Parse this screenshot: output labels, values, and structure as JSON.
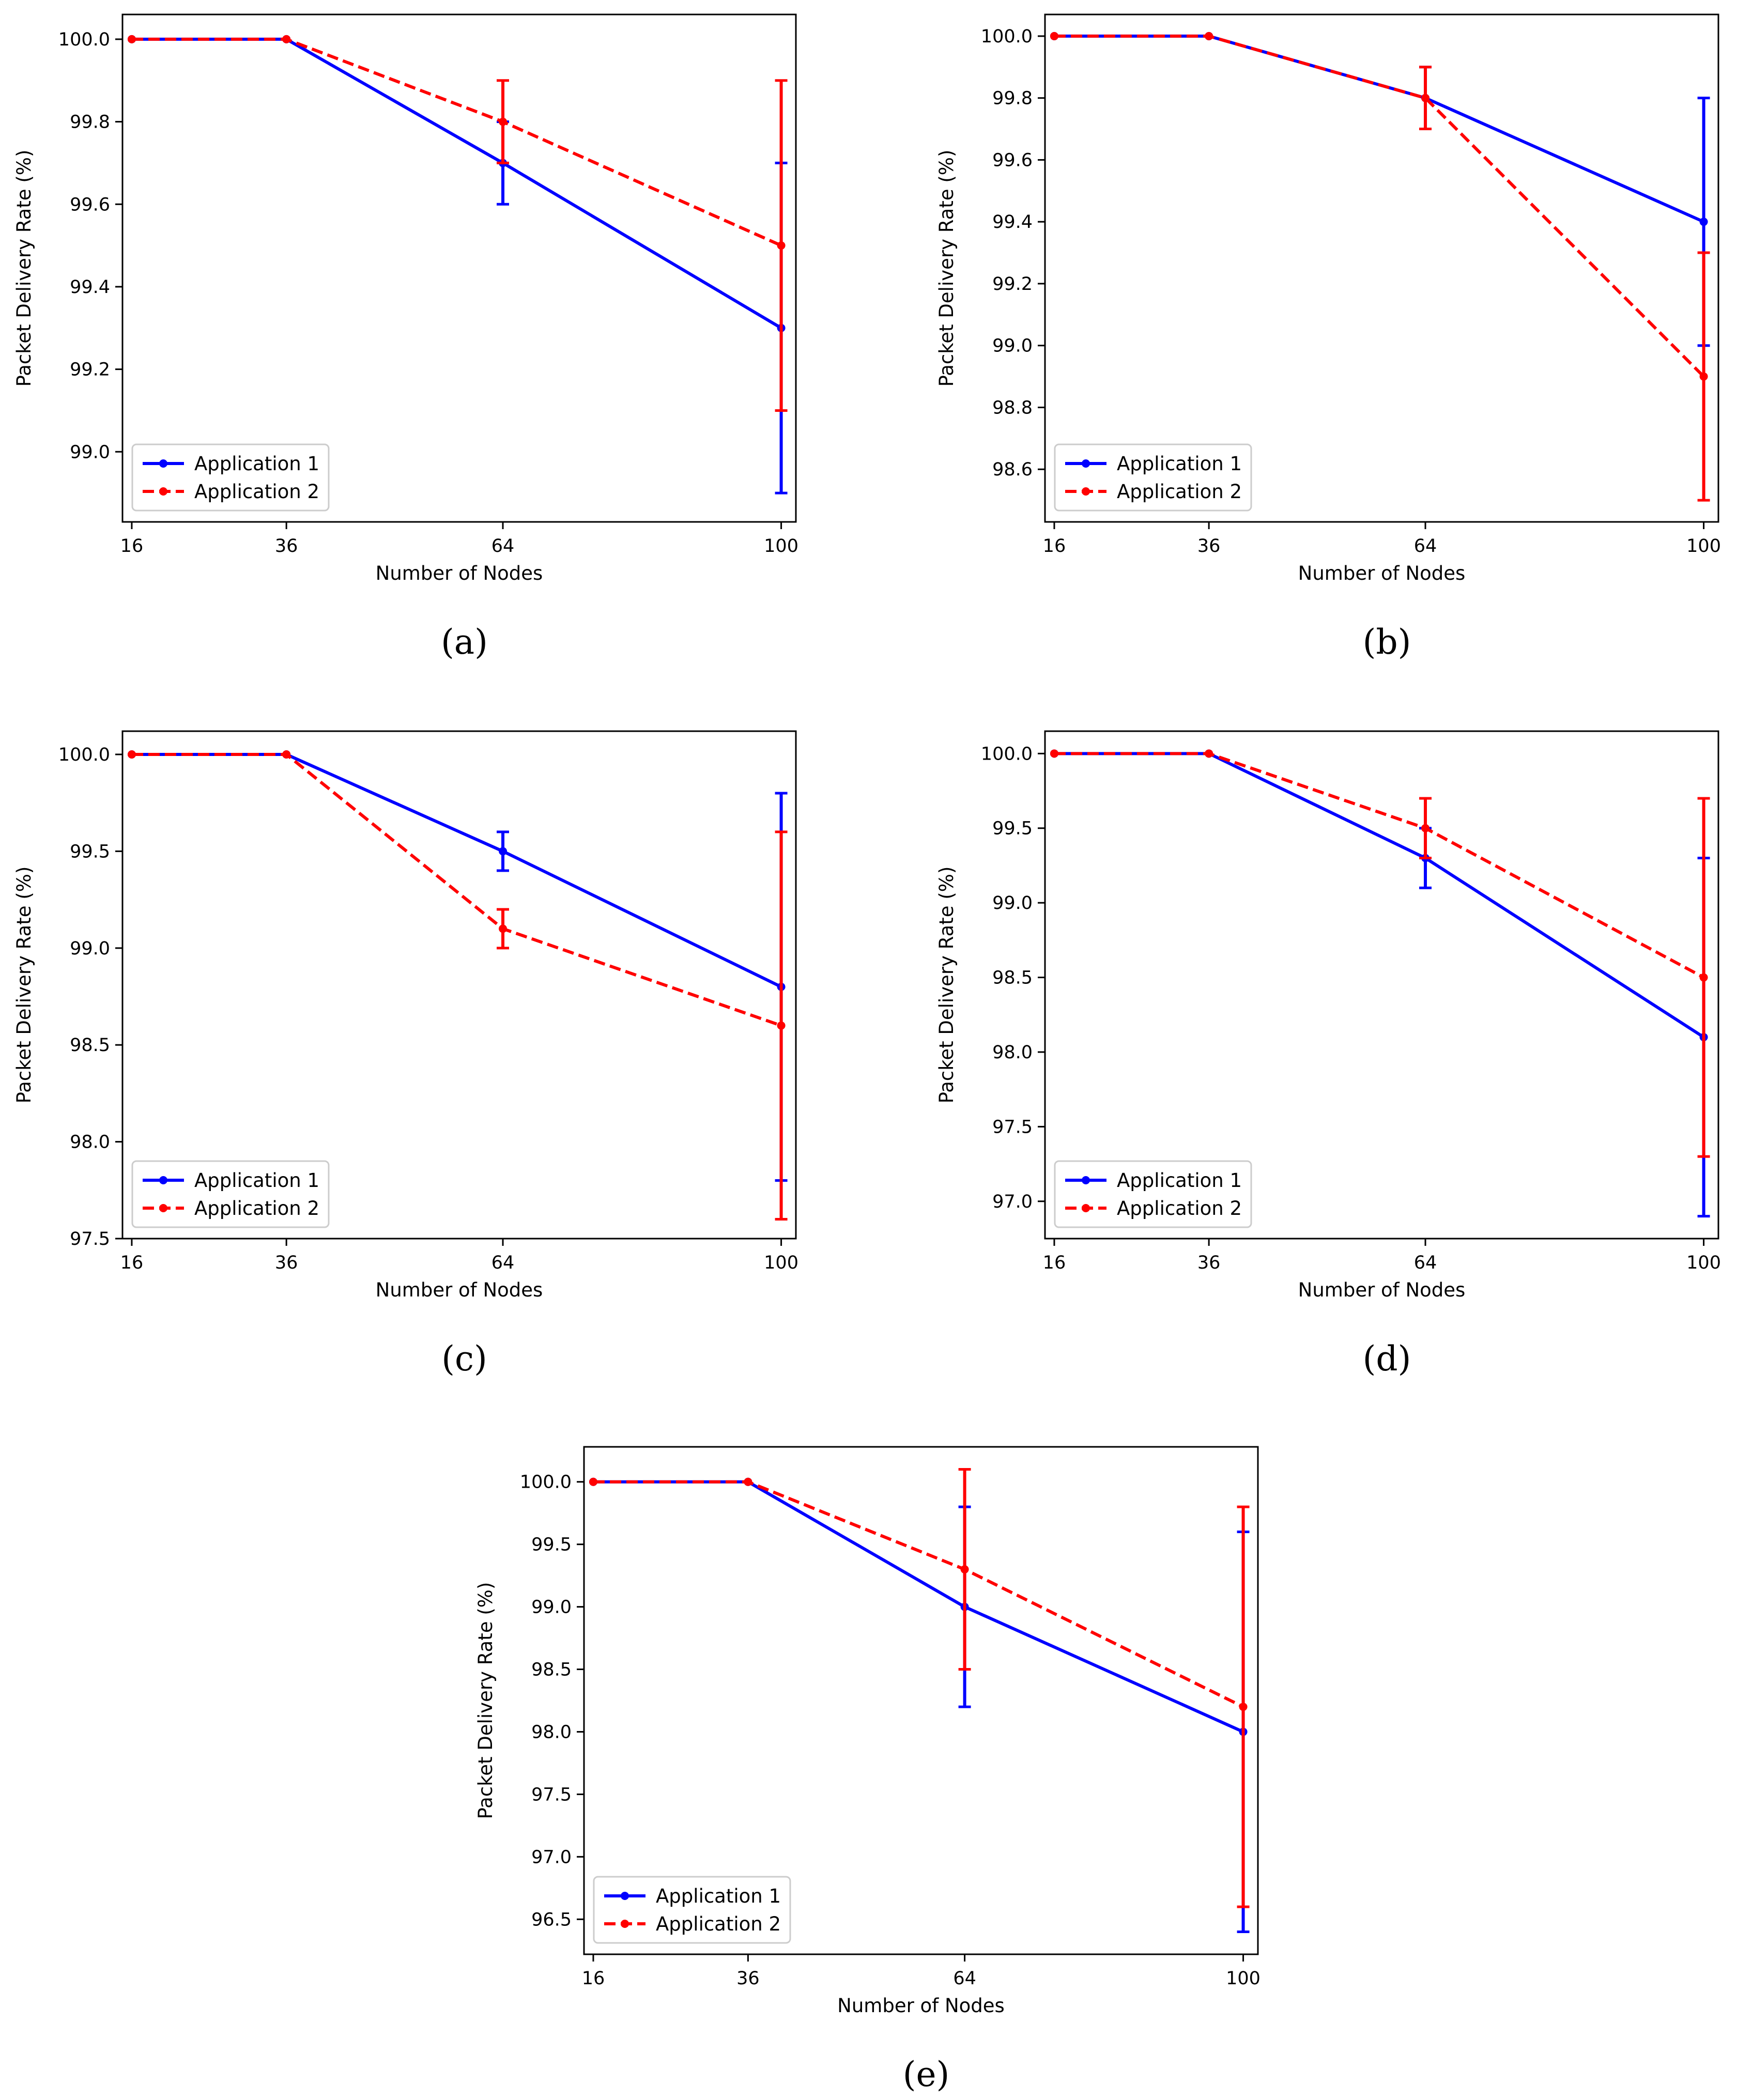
{
  "figure": {
    "common": {
      "xlabel": "Number of Nodes",
      "ylabel": "Packet Delivery Rate (%)",
      "x": [
        16,
        36,
        64,
        100
      ],
      "x_tick_labels": [
        "16",
        "36",
        "64",
        "100"
      ],
      "legend": [
        "Application 1",
        "Application 2"
      ],
      "legend_position": "lower-left",
      "colors": {
        "app1": "#0000ff",
        "app2": "#ff0000",
        "axis": "#000000"
      }
    }
  },
  "chart_data": [
    {
      "id": "a",
      "caption": "(a)",
      "type": "line",
      "xlabel": "Number of Nodes",
      "ylabel": "Packet Delivery Rate (%)",
      "x": [
        16,
        36,
        64,
        100
      ],
      "ylim": [
        98.83,
        100.06
      ],
      "yticks": [
        99.0,
        99.2,
        99.4,
        99.6,
        99.8,
        100.0
      ],
      "ytick_labels": [
        "99.0",
        "99.2",
        "99.4",
        "99.6",
        "99.8",
        "100.0"
      ],
      "series": [
        {
          "name": "Application 1",
          "style": "solid",
          "values": [
            100.0,
            100.0,
            99.7,
            99.3
          ],
          "err": [
            0,
            0,
            0.1,
            0.4
          ]
        },
        {
          "name": "Application 2",
          "style": "dashed",
          "values": [
            100.0,
            100.0,
            99.8,
            99.5
          ],
          "err": [
            0,
            0,
            0.1,
            0.4
          ]
        }
      ]
    },
    {
      "id": "b",
      "caption": "(b)",
      "type": "line",
      "xlabel": "Number of Nodes",
      "ylabel": "Packet Delivery Rate (%)",
      "x": [
        16,
        36,
        64,
        100
      ],
      "ylim": [
        98.43,
        100.07
      ],
      "yticks": [
        98.6,
        98.8,
        99.0,
        99.2,
        99.4,
        99.6,
        99.8,
        100.0
      ],
      "ytick_labels": [
        "98.6",
        "98.8",
        "99.0",
        "99.2",
        "99.4",
        "99.6",
        "99.8",
        "100.0"
      ],
      "series": [
        {
          "name": "Application 1",
          "style": "solid",
          "values": [
            100.0,
            100.0,
            99.8,
            99.4
          ],
          "err": [
            0,
            0,
            0.1,
            0.4
          ]
        },
        {
          "name": "Application 2",
          "style": "dashed",
          "values": [
            100.0,
            100.0,
            99.8,
            98.9
          ],
          "err": [
            0,
            0,
            0.1,
            0.4
          ]
        }
      ]
    },
    {
      "id": "c",
      "caption": "(c)",
      "type": "line",
      "xlabel": "Number of Nodes",
      "ylabel": "Packet Delivery Rate (%)",
      "x": [
        16,
        36,
        64,
        100
      ],
      "ylim": [
        97.5,
        100.12
      ],
      "yticks": [
        97.5,
        98.0,
        98.5,
        99.0,
        99.5,
        100.0
      ],
      "ytick_labels": [
        "97.5",
        "98.0",
        "98.5",
        "99.0",
        "99.5",
        "100.0"
      ],
      "series": [
        {
          "name": "Application 1",
          "style": "solid",
          "values": [
            100.0,
            100.0,
            99.5,
            98.8
          ],
          "err": [
            0,
            0,
            0.1,
            1.0
          ]
        },
        {
          "name": "Application 2",
          "style": "dashed",
          "values": [
            100.0,
            100.0,
            99.1,
            98.6
          ],
          "err": [
            0,
            0,
            0.1,
            1.0
          ]
        }
      ]
    },
    {
      "id": "d",
      "caption": "(d)",
      "type": "line",
      "xlabel": "Number of Nodes",
      "ylabel": "Packet Delivery Rate (%)",
      "x": [
        16,
        36,
        64,
        100
      ],
      "ylim": [
        96.75,
        100.15
      ],
      "yticks": [
        97.0,
        97.5,
        98.0,
        98.5,
        99.0,
        99.5,
        100.0
      ],
      "ytick_labels": [
        "97.0",
        "97.5",
        "98.0",
        "98.5",
        "99.0",
        "99.5",
        "100.0"
      ],
      "series": [
        {
          "name": "Application 1",
          "style": "solid",
          "values": [
            100.0,
            100.0,
            99.3,
            98.1
          ],
          "err": [
            0,
            0,
            0.2,
            1.2
          ]
        },
        {
          "name": "Application 2",
          "style": "dashed",
          "values": [
            100.0,
            100.0,
            99.5,
            98.5
          ],
          "err": [
            0,
            0,
            0.2,
            1.2
          ]
        }
      ]
    },
    {
      "id": "e",
      "caption": "(e)",
      "type": "line",
      "xlabel": "Number of Nodes",
      "ylabel": "Packet Delivery Rate (%)",
      "x": [
        16,
        36,
        64,
        100
      ],
      "ylim": [
        96.22,
        100.28
      ],
      "yticks": [
        96.5,
        97.0,
        97.5,
        98.0,
        98.5,
        99.0,
        99.5,
        100.0
      ],
      "ytick_labels": [
        "96.5",
        "97.0",
        "97.5",
        "98.0",
        "98.5",
        "99.0",
        "99.5",
        "100.0"
      ],
      "series": [
        {
          "name": "Application 1",
          "style": "solid",
          "values": [
            100.0,
            100.0,
            99.0,
            98.0
          ],
          "err": [
            0,
            0,
            0.8,
            1.6
          ]
        },
        {
          "name": "Application 2",
          "style": "dashed",
          "values": [
            100.0,
            100.0,
            99.3,
            98.2
          ],
          "err": [
            0,
            0,
            0.8,
            1.6
          ]
        }
      ]
    }
  ]
}
